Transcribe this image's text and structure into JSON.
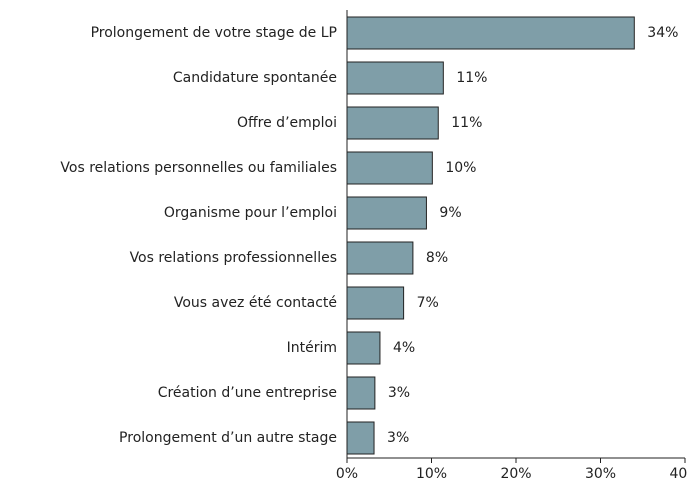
{
  "chart_data": {
    "type": "barh",
    "categories": [
      "Prolongement de votre stage de LP",
      "Candidature spontanée",
      "Offre d’emploi",
      "Vos relations personnelles ou familiales",
      "Organisme pour l’emploi",
      "Vos relations professionnelles",
      "Vous avez été contacté",
      "Intérim",
      "Création d’une entreprise",
      "Prolongement d’un autre stage"
    ],
    "values": [
      34,
      11.4,
      10.8,
      10.1,
      9.4,
      7.8,
      6.7,
      3.9,
      3.3,
      3.2
    ],
    "value_labels": [
      "34%",
      "11%",
      "11%",
      "10%",
      "9%",
      "8%",
      "7%",
      "4%",
      "3%",
      "3%"
    ],
    "color": "#7f9ea8",
    "xlim": [
      0,
      40
    ],
    "xticks": [
      {
        "value": 0,
        "label": "0%"
      },
      {
        "value": 10,
        "label": "10%"
      },
      {
        "value": 20,
        "label": "20%"
      },
      {
        "value": 30,
        "label": "30%"
      },
      {
        "value": 40,
        "label": "40%"
      }
    ]
  }
}
